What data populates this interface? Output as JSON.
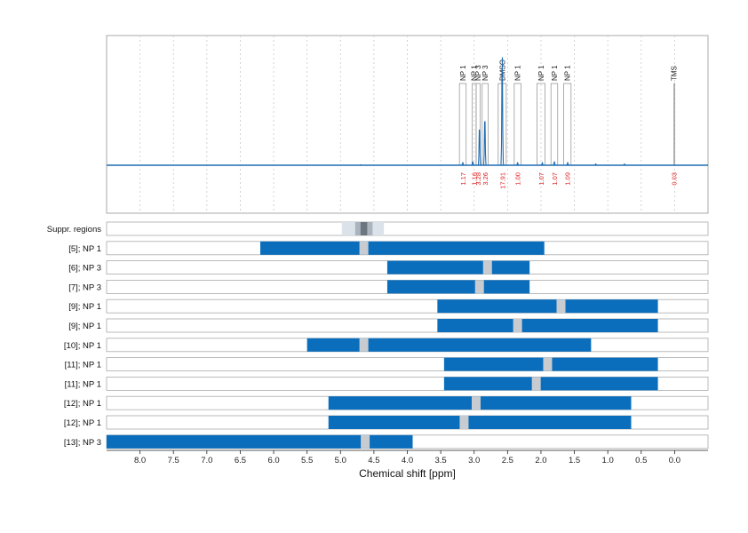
{
  "chart_data": {
    "type": "nmr-spectrum-with-range-bars",
    "xlabel": "Chemical shift [ppm]",
    "xlim": [
      8.5,
      -0.5
    ],
    "x_reversed": true,
    "xticks": [
      8.0,
      7.5,
      7.0,
      6.5,
      6.0,
      5.5,
      5.0,
      4.5,
      4.0,
      3.5,
      3.0,
      2.5,
      2.0,
      1.5,
      1.0,
      0.5,
      0.0
    ],
    "tick_labels": [
      "8.0",
      "7.5",
      "7.0",
      "6.5",
      "6.0",
      "5.5",
      "5.0",
      "4.5",
      "4.0",
      "3.5",
      "3.0",
      "2.5",
      "2.0",
      "1.5",
      "1.0",
      "0.5",
      "0.0"
    ],
    "grid": true,
    "spectrum": {
      "color": "#1f6eb5",
      "baseline_fraction": 0.73,
      "peaks": [
        {
          "ppm": 3.17,
          "height": 0.02
        },
        {
          "ppm": 3.02,
          "height": 0.03
        },
        {
          "ppm": 2.92,
          "height": 0.33
        },
        {
          "ppm": 2.84,
          "height": 0.41
        },
        {
          "ppm": 2.58,
          "height": 0.94
        },
        {
          "ppm": 2.35,
          "height": 0.02
        },
        {
          "ppm": 1.98,
          "height": 0.02
        },
        {
          "ppm": 1.8,
          "height": 0.03
        },
        {
          "ppm": 1.6,
          "height": 0.02
        },
        {
          "ppm": 1.18,
          "height": 0.01
        },
        {
          "ppm": 0.75,
          "height": 0.01
        },
        {
          "ppm": 4.7,
          "height": 0.004
        }
      ]
    },
    "annotations": [
      {
        "label": "NP 1",
        "ppm_min": 3.12,
        "ppm_max": 3.22,
        "integral": "1.17"
      },
      {
        "label": "NP 1",
        "ppm_min": 2.97,
        "ppm_max": 3.03,
        "integral": "1.16"
      },
      {
        "label": "NP 3",
        "ppm_min": 2.91,
        "ppm_max": 2.97,
        "integral": "3.28"
      },
      {
        "label": "NP 3",
        "ppm_min": 2.79,
        "ppm_max": 2.88,
        "integral": "3.26"
      },
      {
        "label": "DMSO",
        "ppm_min": 2.52,
        "ppm_max": 2.64,
        "integral": "17.91"
      },
      {
        "label": "NP 1",
        "ppm_min": 2.3,
        "ppm_max": 2.4,
        "integral": "1.00"
      },
      {
        "label": "NP 1",
        "ppm_min": 1.94,
        "ppm_max": 2.06,
        "integral": "1.07"
      },
      {
        "label": "NP 1",
        "ppm_min": 1.75,
        "ppm_max": 1.85,
        "integral": "1.07"
      },
      {
        "label": "NP 1",
        "ppm_min": 1.55,
        "ppm_max": 1.66,
        "integral": "1.09"
      },
      {
        "label": "TMS",
        "ppm_min": 0.01,
        "ppm_max": 0.01,
        "integral": "0.03"
      }
    ],
    "suppression": {
      "label": "Suppr. regions",
      "outer": [
        4.35,
        4.98
      ],
      "mid": [
        4.52,
        4.78
      ],
      "inner": [
        4.6,
        4.7
      ]
    },
    "range_rows": [
      {
        "label": "[5]; NP 1",
        "from": 6.2,
        "to": 1.95,
        "gap": 4.65
      },
      {
        "label": "[6]; NP 3",
        "from": 4.3,
        "to": 2.17,
        "gap": 2.8
      },
      {
        "label": "[7]; NP 3",
        "from": 4.3,
        "to": 2.17,
        "gap": 2.92
      },
      {
        "label": "[9]; NP 1",
        "from": 3.55,
        "to": 0.25,
        "gap": 1.7
      },
      {
        "label": "[9]; NP 1",
        "from": 3.55,
        "to": 0.25,
        "gap": 2.35
      },
      {
        "label": "[10]; NP 1",
        "from": 5.5,
        "to": 1.25,
        "gap": 4.65
      },
      {
        "label": "[11]; NP 1",
        "from": 3.45,
        "to": 0.25,
        "gap": 1.9
      },
      {
        "label": "[11]; NP 1",
        "from": 3.45,
        "to": 0.25,
        "gap": 2.07
      },
      {
        "label": "[12]; NP 1",
        "from": 5.18,
        "to": 0.65,
        "gap": 2.97
      },
      {
        "label": "[12]; NP 1",
        "from": 5.18,
        "to": 0.65,
        "gap": 3.15
      },
      {
        "label": "[13]; NP 3",
        "from": 8.5,
        "to": 3.92,
        "gap": 4.63
      }
    ],
    "colors": {
      "bar": "#0a6ebd",
      "gap": "#c8ccd0",
      "spectrum": "#1f6eb5",
      "integral_text": "#e02020",
      "suppr_outer": "#dbe2ea",
      "suppr_mid": "#aab4be",
      "suppr_inner": "#6b7680",
      "frame": "#aaaaaa",
      "grid": "#c8c8c8"
    }
  }
}
